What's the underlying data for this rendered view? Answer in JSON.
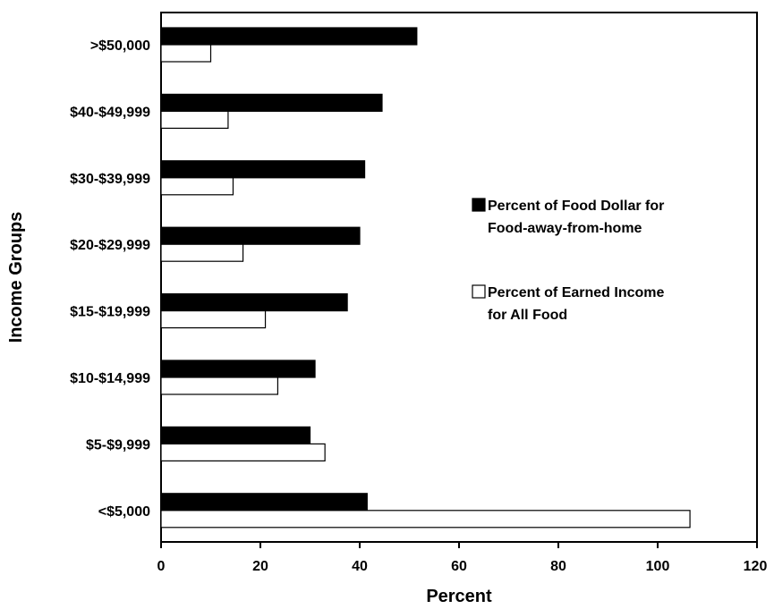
{
  "chart_data": {
    "type": "bar",
    "orientation": "horizontal",
    "categories": [
      ">$50,000",
      "$40-$49,999",
      "$30-$39,999",
      "$20-$29,999",
      "$15-$19,999",
      "$10-$14,999",
      "$5-$9,999",
      "<$5,000"
    ],
    "series": [
      {
        "name": "Percent of Food Dollar for Food-away-from-home",
        "color": "#000000",
        "values": [
          51.5,
          44.5,
          41,
          40,
          37.5,
          31,
          30,
          41.5
        ]
      },
      {
        "name": "Percent of Earned Income for All Food",
        "color": "#ffffff",
        "values": [
          10,
          13.5,
          14.5,
          16.5,
          21,
          23.5,
          33,
          106.5
        ]
      }
    ],
    "xlabel": "Percent",
    "ylabel": "Income Groups",
    "xlim": [
      0,
      120
    ],
    "xticks": [
      0,
      20,
      40,
      60,
      80,
      100,
      120
    ],
    "grid": false,
    "legend_position": "right",
    "legend": [
      {
        "lines": [
          "Percent of Food Dollar for",
          "Food-away-from-home"
        ],
        "series": 0
      },
      {
        "lines": [
          "Percent of Earned Income",
          "for All Food"
        ],
        "series": 1
      }
    ]
  }
}
